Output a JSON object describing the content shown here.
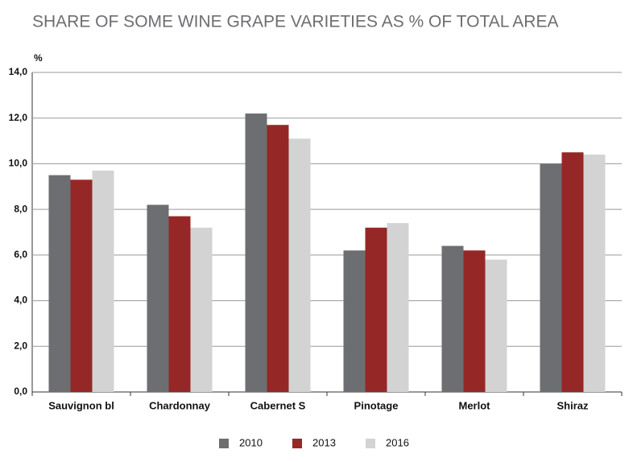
{
  "chart_data": {
    "type": "bar",
    "title": "SHARE OF SOME WINE GRAPE VARIETIES AS % OF TOTAL AREA",
    "y_label": "%",
    "categories": [
      "Sauvignon bl",
      "Chardonnay",
      "Cabernet S",
      "Pinotage",
      "Merlot",
      "Shiraz"
    ],
    "series": [
      {
        "name": "2010",
        "color": "#6d6e71",
        "values": [
          9.5,
          8.2,
          12.2,
          6.2,
          6.4,
          10.0
        ]
      },
      {
        "name": "2013",
        "color": "#952826",
        "values": [
          9.3,
          7.7,
          11.7,
          7.2,
          6.2,
          10.5
        ]
      },
      {
        "name": "2016",
        "color": "#d3d3d4",
        "values": [
          9.7,
          7.2,
          11.1,
          7.4,
          5.8,
          10.4
        ]
      }
    ],
    "ylim": [
      0,
      14
    ],
    "yticks": [
      {
        "value": 0,
        "label": "0,0"
      },
      {
        "value": 2,
        "label": "2,0"
      },
      {
        "value": 4,
        "label": "4,0"
      },
      {
        "value": 6,
        "label": "6,0"
      },
      {
        "value": 8,
        "label": "8,0"
      },
      {
        "value": 10,
        "label": "10,0"
      },
      {
        "value": 12,
        "label": "12,0"
      },
      {
        "value": 14,
        "label": "14,0"
      }
    ],
    "grid": true
  }
}
